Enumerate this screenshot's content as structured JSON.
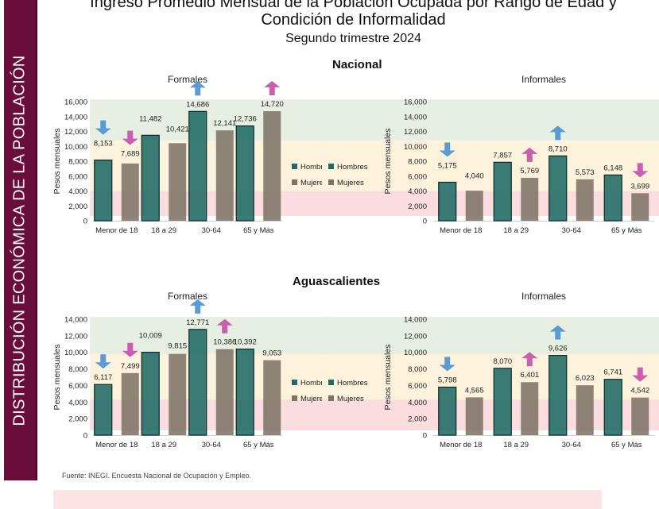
{
  "sidebar": {
    "label": "DISTRIBUCIÓN ECONÓMICA DE LA POBLACIÓN"
  },
  "header": {
    "title_line1": "Ingreso Promedio Mensual de la Población Ocupada por Rango de Edad y",
    "title_line2": "Condición de Informalidad",
    "subtitle": "Segundo trimestre 2024"
  },
  "regions": {
    "nacional": "Nacional",
    "aguascalientes": "Aguascalientes"
  },
  "footer": {
    "source": "Fuente: INEGI. Encuesta Nacional de Ocupación y Empleo."
  },
  "colors": {
    "hombres": "#1f6a64",
    "mujeres": "#7d7468",
    "band_high": "#e6efe2",
    "band_mid": "#fdf3dc",
    "band_low": "#fbdcdf",
    "arrow_blue": "#5b9bd5",
    "arrow_pink": "#c95fae",
    "sidebar": "#6b0d3b"
  },
  "chart_data": [
    {
      "type": "bar",
      "region": "Nacional",
      "title": "Formales",
      "ylabel": "Pesos mensuales",
      "xlabel": "",
      "categories": [
        "Menor de 18",
        "18 a 29",
        "30-64",
        "65 y Más"
      ],
      "series": [
        {
          "name": "Hombres",
          "values": [
            8153,
            11482,
            14686,
            12736
          ],
          "labels": [
            "8,153",
            "11,482",
            "14,686",
            "12,736"
          ]
        },
        {
          "name": "Mujeres",
          "values": [
            7689,
            10421,
            12141,
            14720
          ],
          "labels": [
            "7,689",
            "10,421",
            "12,141",
            "14,720"
          ]
        }
      ],
      "ylim": [
        0,
        16000
      ],
      "yticks": [
        "0",
        "2,000",
        "4,000",
        "6,000",
        "8,000",
        "10,000",
        "12,000",
        "14,000",
        "16,000"
      ],
      "ytick_values": [
        0,
        2000,
        4000,
        6000,
        8000,
        10000,
        12000,
        14000,
        16000
      ],
      "bands": [
        {
          "from": 0,
          "to": 4000,
          "level": "low"
        },
        {
          "from": 4000,
          "to": 10800,
          "level": "mid"
        },
        {
          "from": 10800,
          "to": 16300,
          "level": "high"
        }
      ],
      "legend": {
        "entries": [
          "Hombres",
          "Mujeres"
        ],
        "position": "right"
      },
      "annotations": [
        {
          "type": "arrow-down",
          "color": "blue",
          "category": "Menor de 18",
          "series": "Hombres"
        },
        {
          "type": "arrow-down",
          "color": "pink",
          "category": "Menor de 18",
          "series": "Mujeres"
        },
        {
          "type": "arrow-up",
          "color": "blue",
          "category": "30-64",
          "series": "Hombres"
        },
        {
          "type": "arrow-up",
          "color": "pink",
          "category": "65 y Más",
          "series": "Mujeres"
        }
      ]
    },
    {
      "type": "bar",
      "region": "Nacional",
      "title": "Informales",
      "ylabel": "Pesos mensuales",
      "xlabel": "",
      "categories": [
        "Menor de 18",
        "18 a 29",
        "30-64",
        "65 y Más"
      ],
      "series": [
        {
          "name": "Hombres",
          "values": [
            5175,
            7857,
            8710,
            6148
          ],
          "labels": [
            "5,175",
            "7,857",
            "8,710",
            "6,148"
          ]
        },
        {
          "name": "Mujeres",
          "values": [
            4040,
            5769,
            5573,
            3699
          ],
          "labels": [
            "4,040",
            "5,769",
            "5,573",
            "3,699"
          ]
        }
      ],
      "ylim": [
        0,
        16000
      ],
      "yticks": [
        "0",
        "2,000",
        "4,000",
        "6,000",
        "8,000",
        "10,000",
        "12,000",
        "14,000",
        "16,000"
      ],
      "ytick_values": [
        0,
        2000,
        4000,
        6000,
        8000,
        10000,
        12000,
        14000,
        16000
      ],
      "bands": [
        {
          "from": 0,
          "to": 4000,
          "level": "low"
        },
        {
          "from": 4000,
          "to": 10800,
          "level": "mid"
        },
        {
          "from": 10800,
          "to": 16300,
          "level": "high"
        }
      ],
      "legend": {
        "entries": [
          "Hombres",
          "Mujeres"
        ],
        "position": "left"
      },
      "annotations": [
        {
          "type": "arrow-down",
          "color": "blue",
          "category": "Menor de 18",
          "series": "Hombres"
        },
        {
          "type": "arrow-up",
          "color": "pink",
          "category": "18 a 29",
          "series": "Mujeres"
        },
        {
          "type": "arrow-up",
          "color": "blue",
          "category": "30-64",
          "series": "Hombres"
        },
        {
          "type": "arrow-down",
          "color": "pink",
          "category": "65 y Más",
          "series": "Mujeres"
        }
      ]
    },
    {
      "type": "bar",
      "region": "Aguascalientes",
      "title": "Formales",
      "ylabel": "Pesos mensuales",
      "xlabel": "",
      "categories": [
        "Menor de 18",
        "18 a 29",
        "30-64",
        "65 y Más"
      ],
      "series": [
        {
          "name": "Hombres",
          "values": [
            6117,
            10009,
            12771,
            10392
          ],
          "labels": [
            "6,117",
            "10,009",
            "12,771",
            "10,392"
          ]
        },
        {
          "name": "Mujeres",
          "values": [
            7499,
            9815,
            10386,
            9053
          ],
          "labels": [
            "7,499",
            "9,815",
            "10,386",
            "9,053"
          ]
        }
      ],
      "ylim": [
        0,
        14000
      ],
      "yticks": [
        "0",
        "2,000",
        "4,000",
        "6,000",
        "8,000",
        "10,000",
        "12,000",
        "14,000"
      ],
      "ytick_values": [
        0,
        2000,
        4000,
        6000,
        8000,
        10000,
        12000,
        14000
      ],
      "bands": [
        {
          "from": 0,
          "to": 4300,
          "level": "low"
        },
        {
          "from": 4300,
          "to": 9800,
          "level": "mid"
        },
        {
          "from": 9800,
          "to": 15000,
          "level": "high"
        }
      ],
      "legend": {
        "entries": [
          "Hombres",
          "Mujeres"
        ],
        "position": "right"
      },
      "annotations": [
        {
          "type": "arrow-down",
          "color": "blue",
          "category": "Menor de 18",
          "series": "Hombres"
        },
        {
          "type": "arrow-down",
          "color": "pink",
          "category": "Menor de 18",
          "series": "Mujeres"
        },
        {
          "type": "arrow-up",
          "color": "blue",
          "category": "30-64",
          "series": "Hombres"
        },
        {
          "type": "arrow-up",
          "color": "pink",
          "category": "30-64",
          "series": "Mujeres"
        }
      ]
    },
    {
      "type": "bar",
      "region": "Aguascalientes",
      "title": "Informales",
      "ylabel": "Pesos mensuales",
      "xlabel": "",
      "categories": [
        "Menor de 18",
        "18 a 29",
        "30-64",
        "65 y Más"
      ],
      "series": [
        {
          "name": "Hombres",
          "values": [
            5798,
            8070,
            9626,
            6741
          ],
          "labels": [
            "5,798",
            "8,070",
            "9,626",
            "6,741"
          ]
        },
        {
          "name": "Mujeres",
          "values": [
            4565,
            6401,
            6023,
            4542
          ],
          "labels": [
            "4,565",
            "6,401",
            "6,023",
            "4,542"
          ]
        }
      ],
      "ylim": [
        0,
        14000
      ],
      "yticks": [
        "0",
        "2,000",
        "4,000",
        "6,000",
        "8,000",
        "10,000",
        "12,000",
        "14,000"
      ],
      "ytick_values": [
        0,
        2000,
        4000,
        6000,
        8000,
        10000,
        12000,
        14000
      ],
      "bands": [
        {
          "from": 0,
          "to": 4300,
          "level": "low"
        },
        {
          "from": 4300,
          "to": 9800,
          "level": "mid"
        },
        {
          "from": 9800,
          "to": 15000,
          "level": "high"
        }
      ],
      "legend": {
        "entries": [
          "Hombres",
          "Mujeres"
        ],
        "position": "left"
      },
      "annotations": [
        {
          "type": "arrow-down",
          "color": "blue",
          "category": "Menor de 18",
          "series": "Hombres"
        },
        {
          "type": "arrow-up",
          "color": "pink",
          "category": "18 a 29",
          "series": "Mujeres"
        },
        {
          "type": "arrow-up",
          "color": "blue",
          "category": "30-64",
          "series": "Hombres"
        },
        {
          "type": "arrow-down",
          "color": "pink",
          "category": "65 y Más",
          "series": "Mujeres"
        }
      ]
    }
  ]
}
